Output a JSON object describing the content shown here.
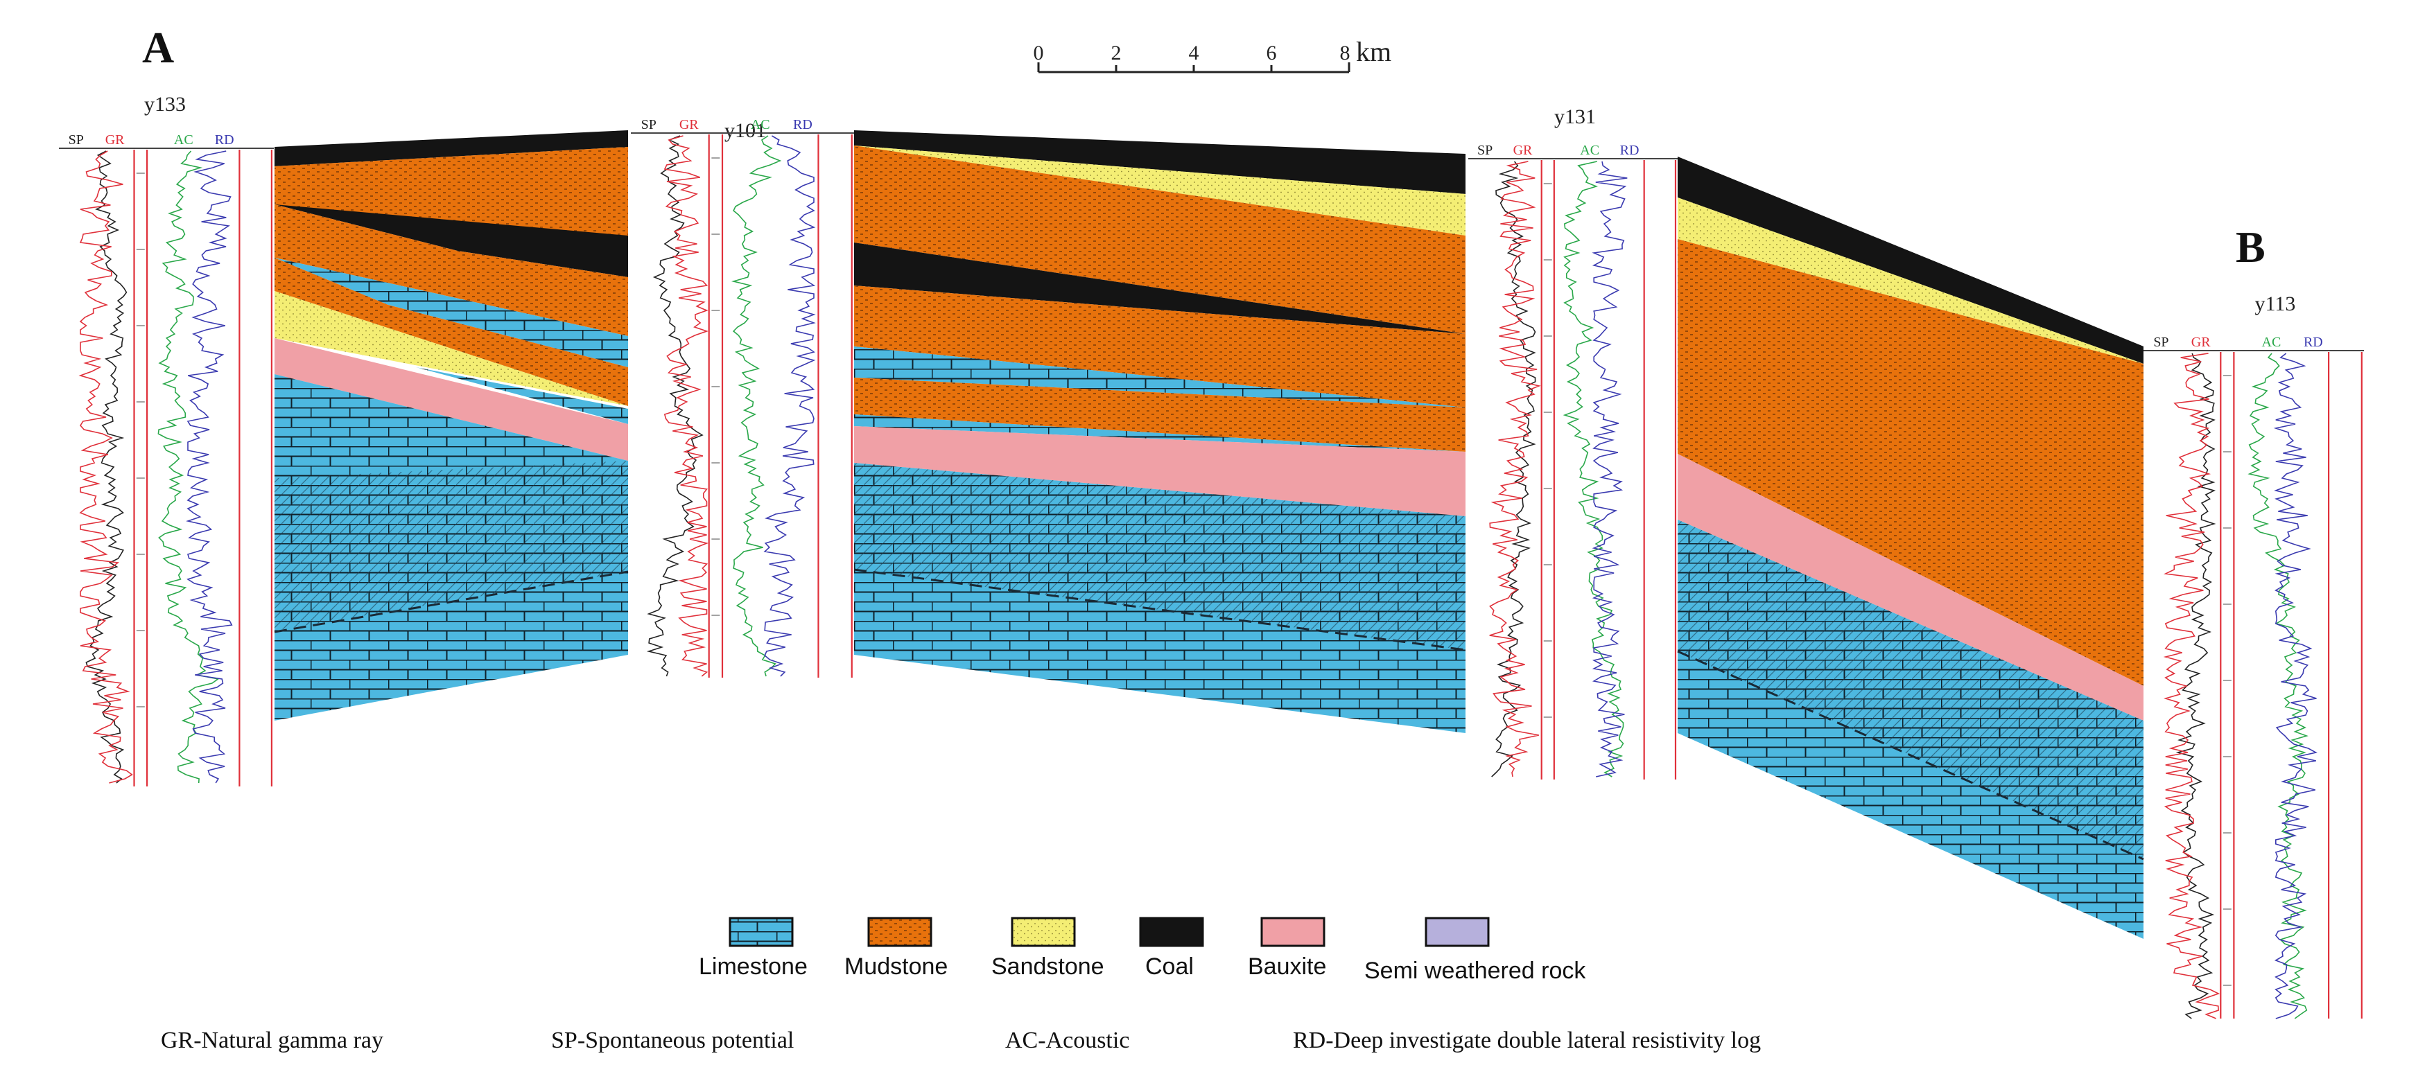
{
  "section": {
    "start_label": "A",
    "end_label": "B"
  },
  "scale_bar": {
    "ticks": [
      "0",
      "2",
      "4",
      "6",
      "8"
    ],
    "unit": "km"
  },
  "wells": [
    {
      "name": "y133",
      "curves": [
        "SP",
        "GR",
        "AC",
        "RD"
      ]
    },
    {
      "name": "y101",
      "curves": [
        "SP",
        "GR",
        "AC",
        "RD"
      ]
    },
    {
      "name": "y131",
      "curves": [
        "SP",
        "GR",
        "AC",
        "RD"
      ]
    },
    {
      "name": "y113",
      "curves": [
        "SP",
        "GR",
        "AC",
        "RD"
      ]
    }
  ],
  "lithology_legend": [
    {
      "label": "Limestone",
      "color": "#4db8e0"
    },
    {
      "label": "Mudstone",
      "color": "#e8720c"
    },
    {
      "label": "Sandstone",
      "color": "#f4ee74"
    },
    {
      "label": "Coal",
      "color": "#141414"
    },
    {
      "label": "Bauxite",
      "color": "#f0a0a6"
    },
    {
      "label": "Semi weathered rock",
      "color": "#b6b0dc"
    }
  ],
  "log_definitions": [
    "GR-Natural gamma ray",
    "SP-Spontaneous potential",
    "AC-Acoustic",
    "RD-Deep investigate double lateral resistivity log"
  ],
  "curve_colors": {
    "SP": "#222222",
    "GR": "#e0303a",
    "AC": "#2aa84a",
    "RD": "#3a3ab0"
  }
}
